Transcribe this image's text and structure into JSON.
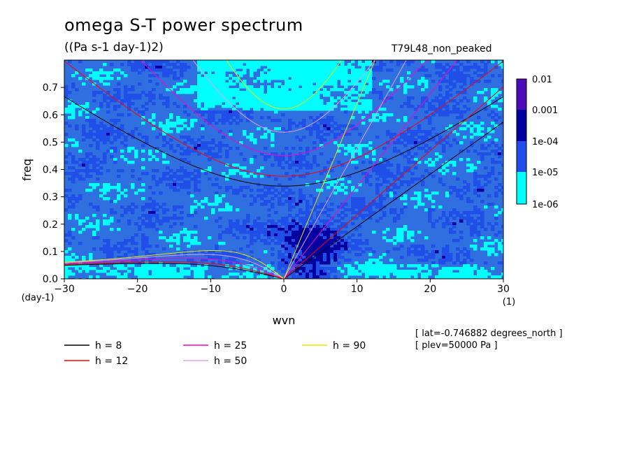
{
  "header": {
    "title": "omega S-T power spectrum",
    "units": "((Pa s-1 day-1)2)",
    "run_name": "T79L48_non_peaked"
  },
  "footer": {
    "lat": "[ lat=-0.746882 degrees_north ]",
    "plev": "[ plev=50000 Pa ]"
  },
  "colors": {
    "levels": [
      "#00ffff",
      "#1f7fff",
      "#1f4fe8",
      "#0000a0",
      "#4d0ab8"
    ],
    "plot_bg": "#2f6fe0"
  },
  "chart_data": {
    "type": "heatmap",
    "title": "omega S-T power spectrum",
    "subtitle": "((Pa s-1 day-1)2)",
    "xlabel": "wvn",
    "ylabel": "freq",
    "x_unit": "(1)",
    "y_unit": "(day-1)",
    "xlim": [
      -30,
      30
    ],
    "ylim": [
      0,
      0.8
    ],
    "xticks": [
      -30,
      -20,
      -10,
      0,
      10,
      20,
      30
    ],
    "yticks": [
      0.0,
      0.1,
      0.2,
      0.3,
      0.4,
      0.5,
      0.6,
      0.7
    ],
    "ytick_labels": [
      "0.0",
      "0.1",
      "0.2",
      "0.3",
      "0.4",
      "0.5",
      "0.6",
      "0.7"
    ],
    "colorbar": {
      "labels": [
        "0.01",
        "0.001",
        "1e-04",
        "1e-05",
        "1e-06"
      ],
      "log_scale": true
    },
    "legend_placement": "bottom-left",
    "series": [
      {
        "name": "h =  8",
        "h": 8,
        "color": "#000000"
      },
      {
        "name": "h = 12",
        "h": 12,
        "color": "#ff0000"
      },
      {
        "name": "h = 25",
        "h": 25,
        "color": "#ff00cc"
      },
      {
        "name": "h = 50",
        "h": 50,
        "color": "#e0a0e8"
      },
      {
        "name": "h = 90",
        "h": 90,
        "color": "#e8e800"
      }
    ]
  }
}
